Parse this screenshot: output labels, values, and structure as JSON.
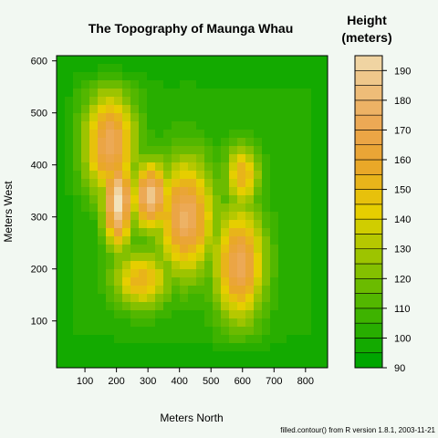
{
  "chart_data": {
    "type": "heatmap",
    "title": "The Topography of Maunga Whau",
    "xlabel": "Meters North",
    "ylabel": "Meters West",
    "xlim": [
      10,
      870
    ],
    "ylim": [
      10,
      610
    ],
    "x_ticks": [
      100,
      200,
      300,
      400,
      500,
      600,
      700,
      800
    ],
    "y_ticks": [
      100,
      200,
      300,
      400,
      500,
      600
    ],
    "legend_title_line1": "Height",
    "legend_title_line2": "(meters)",
    "legend_position": "right",
    "levels": [
      90,
      95,
      100,
      105,
      110,
      115,
      120,
      125,
      130,
      135,
      140,
      145,
      150,
      155,
      160,
      165,
      170,
      175,
      180,
      185,
      190,
      195
    ],
    "legend_ticks": [
      90,
      100,
      110,
      120,
      130,
      140,
      150,
      160,
      170,
      180,
      190
    ],
    "colors": [
      "#00a600",
      "#13aa00",
      "#28ae00",
      "#3eb300",
      "#53b700",
      "#6bbb00",
      "#84c000",
      "#9dc400",
      "#b6c800",
      "#d0cd00",
      "#e6ce00",
      "#e7c10c",
      "#e8b41a",
      "#e9a828",
      "#eaa536",
      "#eba545",
      "#eca955",
      "#edb265",
      "#eebc78",
      "#efc78b",
      "#f0d4a2",
      "#f2e2bb",
      "#f2f2f2"
    ],
    "peaks": [
      {
        "x": 205,
        "y": 330,
        "height": 195,
        "sx": 45,
        "sy": 85
      },
      {
        "x": 180,
        "y": 440,
        "height": 170,
        "sx": 80,
        "sy": 100
      },
      {
        "x": 310,
        "y": 340,
        "height": 182,
        "sx": 60,
        "sy": 65
      },
      {
        "x": 420,
        "y": 300,
        "height": 172,
        "sx": 90,
        "sy": 110
      },
      {
        "x": 590,
        "y": 210,
        "height": 168,
        "sx": 80,
        "sy": 110
      },
      {
        "x": 600,
        "y": 380,
        "height": 150,
        "sx": 55,
        "sy": 60
      },
      {
        "x": 280,
        "y": 180,
        "height": 150,
        "sx": 90,
        "sy": 55
      }
    ],
    "base_height": 95,
    "footer": "filled.contour() from R version 1.8.1, 2003-11-21"
  }
}
